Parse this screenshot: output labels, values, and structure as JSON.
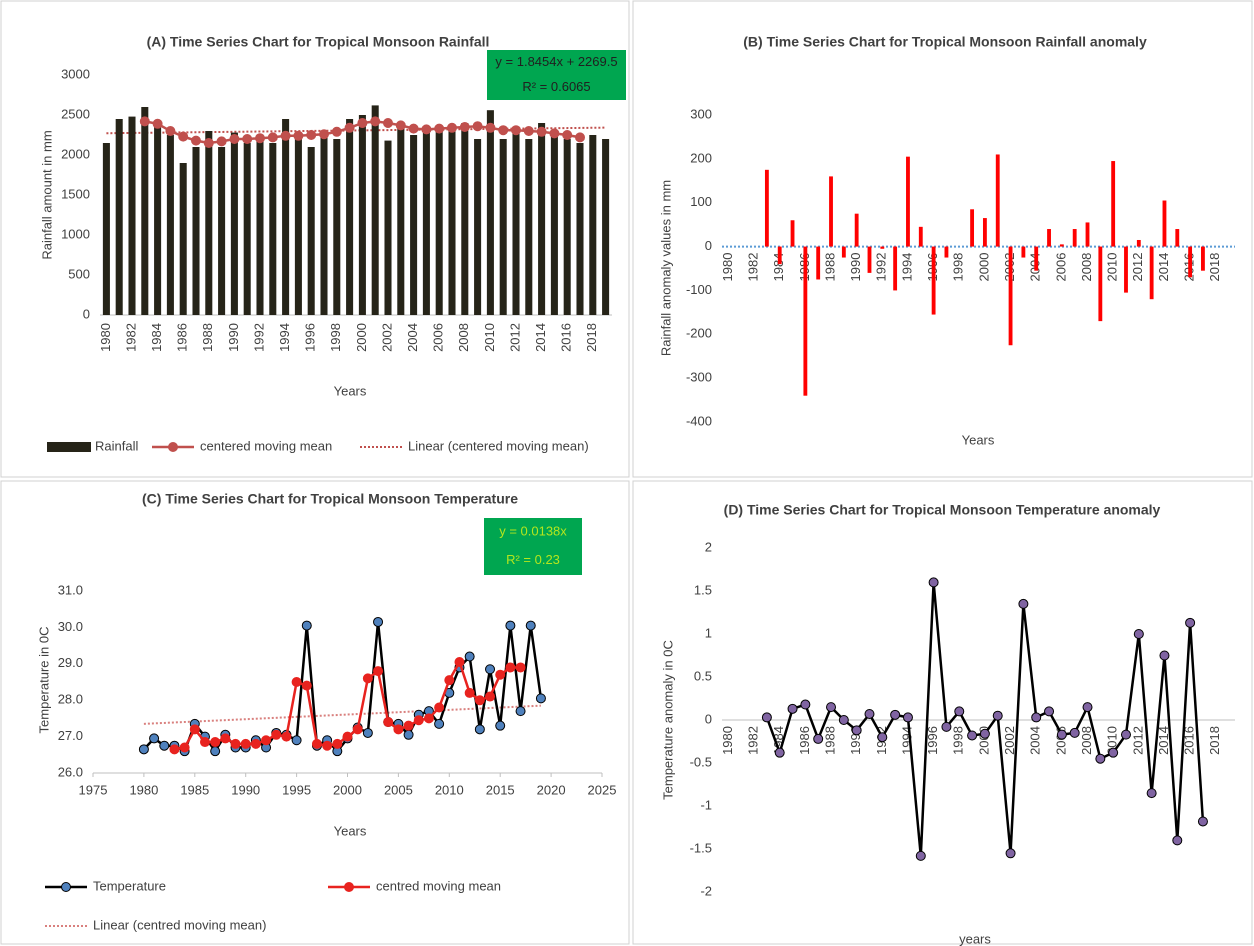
{
  "chart_data": [
    {
      "type": "bar",
      "title": "(A) Time Series Chart for Tropical  Monsoon Rainfall",
      "y_label": "Rainfall amount in mm",
      "x_label": "Years",
      "categories": [
        "1980",
        null,
        "1982",
        null,
        "1984",
        null,
        "1986",
        null,
        "1988",
        null,
        "1990",
        null,
        "1992",
        null,
        "1994",
        null,
        "1996",
        null,
        "1998",
        null,
        "2000",
        null,
        "2002",
        null,
        "2004",
        null,
        "2006",
        null,
        "2008",
        null,
        "2010",
        null,
        "2012",
        null,
        "2014",
        null,
        "2016",
        null,
        "2018",
        null
      ],
      "series": [
        {
          "name": "Rainfall",
          "color": "#262418",
          "values": [
            2150,
            2450,
            2480,
            2600,
            2400,
            2250,
            1900,
            2100,
            2300,
            2100,
            2280,
            2150,
            2200,
            2150,
            2450,
            2250,
            2100,
            2250,
            2200,
            2450,
            2500,
            2620,
            2180,
            2350,
            2250,
            2280,
            2300,
            2350,
            2400,
            2200,
            2560,
            2200,
            2300,
            2200,
            2400,
            2300,
            2200,
            2150,
            2250,
            2200
          ]
        },
        {
          "name": "centered moving mean",
          "type": "line",
          "color": "#c0504d",
          "marker_color": "#c0504d",
          "values": [
            null,
            null,
            null,
            2420,
            2390,
            2300,
            2230,
            2180,
            2150,
            2170,
            2200,
            2200,
            2210,
            2220,
            2240,
            2240,
            2250,
            2260,
            2290,
            2340,
            2400,
            2420,
            2400,
            2370,
            2330,
            2320,
            2330,
            2340,
            2350,
            2360,
            2340,
            2310,
            2310,
            2300,
            2290,
            2270,
            2250,
            2220,
            null,
            null
          ]
        }
      ],
      "trend": {
        "name": "Linear (centered moving mean)",
        "color": "#c0504d",
        "values": [
          2272,
          2342
        ]
      },
      "annotation": [
        "y = 1.8454x + 2269.5",
        "R² = 0.6065"
      ],
      "annotation_color": "#00a650",
      "annotation_text_color": "#202020",
      "ylim": [
        0,
        3000
      ],
      "yticks": [
        0,
        500,
        1000,
        1500,
        2000,
        2500,
        3000
      ]
    },
    {
      "type": "bar",
      "title": "(B) Time Series Chart for Tropical  Monsoon  Rainfall  anomaly",
      "y_label": "Rainfall anomaly values in mm",
      "x_label": "Years",
      "categories": [
        "1980",
        null,
        "1982",
        null,
        "1984",
        null,
        "1986",
        null,
        "1988",
        null,
        "1990",
        null,
        "1992",
        null,
        "1994",
        null,
        "1996",
        null,
        "1998",
        null,
        "2000",
        null,
        "2002",
        null,
        "2004",
        null,
        "2006",
        null,
        "2008",
        null,
        "2010",
        null,
        "2012",
        null,
        "2014",
        null,
        "2016",
        null,
        "2018",
        null
      ],
      "series": [
        {
          "color": "#ff0000",
          "values": [
            null,
            null,
            null,
            175,
            -40,
            60,
            -340,
            -75,
            160,
            -25,
            75,
            -60,
            -5,
            -100,
            205,
            45,
            -155,
            -25,
            0,
            85,
            65,
            210,
            -225,
            -25,
            -55,
            40,
            5,
            40,
            55,
            -170,
            195,
            -105,
            15,
            -120,
            105,
            40,
            -70,
            -55,
            null,
            null
          ]
        }
      ],
      "ylim": [
        -400,
        300
      ],
      "yticks": [
        -400,
        -300,
        -200,
        -100,
        0,
        100,
        200,
        300
      ]
    },
    {
      "type": "line",
      "title": "(C) Time Series Chart for Tropical  Monsoon Temperature",
      "y_label": "Temperature  in 0C",
      "x_label": "Years",
      "x": [
        1980,
        1981,
        1982,
        1983,
        1984,
        1985,
        1986,
        1987,
        1988,
        1989,
        1990,
        1991,
        1992,
        1993,
        1994,
        1995,
        1996,
        1997,
        1998,
        1999,
        2000,
        2001,
        2002,
        2003,
        2004,
        2005,
        2006,
        2007,
        2008,
        2009,
        2010,
        2011,
        2012,
        2013,
        2014,
        2015,
        2016,
        2017,
        2018,
        2019
      ],
      "series": [
        {
          "name": "Temperature",
          "color": "#000000",
          "marker_color": "#4f81bd",
          "values": [
            26.65,
            26.95,
            26.75,
            26.75,
            26.6,
            27.35,
            27.0,
            26.6,
            27.05,
            26.7,
            26.7,
            26.9,
            26.7,
            27.1,
            27.05,
            26.9,
            30.05,
            26.75,
            26.9,
            26.6,
            26.95,
            27.25,
            27.1,
            30.15,
            27.4,
            27.35,
            27.05,
            27.6,
            27.7,
            27.35,
            28.2,
            28.9,
            29.2,
            27.2,
            28.85,
            27.3,
            30.05,
            27.7,
            30.05,
            28.05
          ]
        },
        {
          "name": "centred moving mean",
          "color": "#e8231f",
          "marker_color": "#e8231f",
          "values": [
            null,
            null,
            null,
            26.65,
            26.7,
            27.2,
            26.85,
            26.85,
            26.95,
            26.8,
            26.8,
            26.8,
            26.9,
            27.05,
            27.0,
            28.5,
            28.4,
            26.8,
            26.75,
            26.8,
            27.0,
            27.2,
            28.6,
            28.8,
            27.4,
            27.2,
            27.3,
            27.45,
            27.5,
            27.8,
            28.55,
            29.05,
            28.2,
            28.0,
            28.1,
            28.7,
            28.9,
            28.9,
            null,
            null
          ]
        }
      ],
      "trend": {
        "name": "Linear (centred moving mean)",
        "color": "#d9807e",
        "x": [
          1980,
          2019
        ],
        "values": [
          27.35,
          27.85
        ]
      },
      "annotation": [
        "y = 0.0138x",
        "R² = 0.23"
      ],
      "annotation_color": "#00a650",
      "annotation_text_color": "#b5e61d",
      "xlim": [
        1975,
        2025
      ],
      "xticks": [
        1975,
        1980,
        1985,
        1990,
        1995,
        2000,
        2005,
        2010,
        2015,
        2020,
        2025
      ],
      "ylim": [
        26,
        31
      ],
      "yticks": [
        {
          "value": 26,
          "label": "26.0"
        },
        {
          "value": 27,
          "label": "27.0"
        },
        {
          "value": 28,
          "label": "28.0"
        },
        {
          "value": 29,
          "label": "29.0"
        },
        {
          "value": 30,
          "label": "30.0"
        },
        {
          "value": 31,
          "label": "31.0"
        }
      ]
    },
    {
      "type": "line",
      "title": "(D) Time Series Chart for Tropical  Monsoon  Temperature anomaly",
      "y_label": "Temperature  anomaly in 0C",
      "x_label": "years",
      "categories": [
        "1980",
        null,
        "1982",
        null,
        "1984",
        null,
        "1986",
        null,
        "1988",
        null,
        "1990",
        null,
        "1992",
        null,
        "1994",
        null,
        "1996",
        null,
        "1998",
        null,
        "2000",
        null,
        "2002",
        null,
        "2004",
        null,
        "2006",
        null,
        "2008",
        null,
        "2010",
        null,
        "2012",
        null,
        "2014",
        null,
        "2016",
        null,
        "2018",
        null
      ],
      "series": [
        {
          "color": "#000000",
          "marker_color": "#8064a2",
          "values": [
            null,
            null,
            null,
            0.03,
            -0.38,
            0.13,
            0.18,
            -0.22,
            0.15,
            0,
            -0.12,
            0.07,
            -0.2,
            0.06,
            0.03,
            -1.58,
            1.6,
            -0.08,
            0.1,
            -0.18,
            -0.16,
            0.05,
            -1.55,
            1.35,
            0.03,
            0.1,
            -0.17,
            -0.15,
            0.15,
            -0.45,
            -0.38,
            -0.17,
            1.0,
            -0.85,
            0.75,
            -1.4,
            1.13,
            -1.18,
            null,
            null
          ]
        }
      ],
      "ylim": [
        -2,
        2
      ],
      "yticks": [
        -2,
        -1.5,
        -1,
        -0.5,
        0,
        0.5,
        1,
        1.5,
        2
      ]
    }
  ]
}
